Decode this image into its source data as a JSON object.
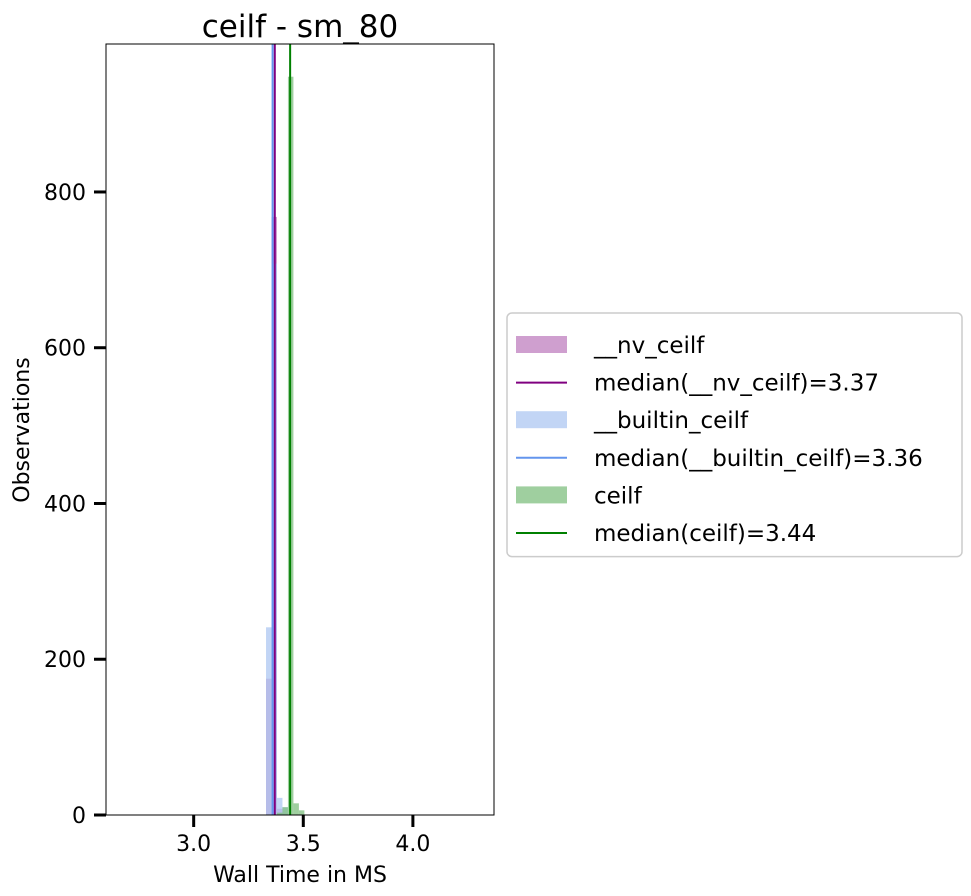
{
  "chart_data": {
    "type": "histogram",
    "title": "ceilf - sm_80",
    "xlabel": "Wall Time in MS",
    "ylabel": "Observations",
    "xlim": [
      2.6,
      4.37
    ],
    "ylim": [
      0,
      990
    ],
    "xticks": [
      3.0,
      3.5,
      4.0
    ],
    "xtick_labels": [
      "3.0",
      "3.5",
      "4.0"
    ],
    "yticks": [
      0,
      200,
      400,
      600,
      800
    ],
    "ytick_labels": [
      "0",
      "200",
      "400",
      "600",
      "800"
    ],
    "grid": false,
    "legend_placement": "center-left outside",
    "series": [
      {
        "name": "__nv_ceilf",
        "color": "#bf7fbf",
        "bins": [
          {
            "x0": 3.33,
            "x1": 3.355,
            "count": 175
          },
          {
            "x0": 3.355,
            "x1": 3.38,
            "count": 768
          },
          {
            "x0": 3.38,
            "x1": 3.405,
            "count": 8
          },
          {
            "x0": 3.405,
            "x1": 3.43,
            "count": 2
          }
        ]
      },
      {
        "name": "__builtin_ceilf",
        "color": "#aec7f2",
        "bins": [
          {
            "x0": 3.33,
            "x1": 3.355,
            "count": 241
          },
          {
            "x0": 3.355,
            "x1": 3.38,
            "count": 708
          },
          {
            "x0": 3.38,
            "x1": 3.405,
            "count": 22
          },
          {
            "x0": 3.405,
            "x1": 3.43,
            "count": 10
          }
        ]
      },
      {
        "name": "ceilf",
        "color": "#7fbf7f",
        "bins": [
          {
            "x0": 3.38,
            "x1": 3.405,
            "count": 3
          },
          {
            "x0": 3.405,
            "x1": 3.43,
            "count": 10
          },
          {
            "x0": 3.43,
            "x1": 3.455,
            "count": 948
          },
          {
            "x0": 3.455,
            "x1": 3.48,
            "count": 15
          },
          {
            "x0": 3.48,
            "x1": 3.505,
            "count": 6
          }
        ]
      }
    ],
    "medians": [
      {
        "label": "median(__nv_ceilf)=3.37",
        "value": 3.37,
        "color": "#800080"
      },
      {
        "label": "median(__builtin_ceilf)=3.36",
        "value": 3.36,
        "color": "#6495ed"
      },
      {
        "label": "median(ceilf)=3.44",
        "value": 3.44,
        "color": "#008000"
      }
    ],
    "legend": [
      {
        "kind": "patch",
        "label": "__nv_ceilf",
        "color": "#bf7fbf"
      },
      {
        "kind": "line",
        "label": "median(__nv_ceilf)=3.37",
        "color": "#800080"
      },
      {
        "kind": "patch",
        "label": "__builtin_ceilf",
        "color": "#aec7f2"
      },
      {
        "kind": "line",
        "label": "median(__builtin_ceilf)=3.36",
        "color": "#6495ed"
      },
      {
        "kind": "patch",
        "label": "ceilf",
        "color": "#7fbf7f"
      },
      {
        "kind": "line",
        "label": "median(ceilf)=3.44",
        "color": "#008000"
      }
    ]
  }
}
